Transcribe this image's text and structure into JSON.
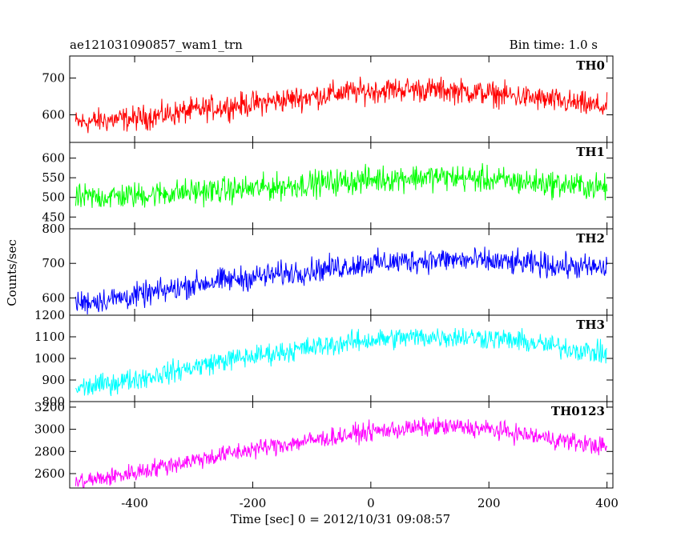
{
  "chart_data": {
    "type": "line",
    "title": "ae121031090857_wam1_trn",
    "subtitle": "Bin time: 1.0 s",
    "xlabel": "Time [sec] 0 = 2012/10/31 09:08:57",
    "ylabel": "Counts/sec",
    "xlim": [
      -510,
      410
    ],
    "xticks": [
      -400,
      -200,
      0,
      200,
      400
    ],
    "x": [
      -500,
      -450,
      -400,
      -350,
      -300,
      -250,
      -200,
      -150,
      -100,
      -50,
      0,
      50,
      100,
      150,
      200,
      250,
      300,
      350,
      400
    ],
    "panels": [
      {
        "name": "TH0",
        "color": "#ff0000",
        "ylim": [
          525,
          760
        ],
        "yticks": [
          600,
          700
        ],
        "values": [
          578,
          585,
          590,
          600,
          612,
          622,
          630,
          640,
          650,
          660,
          665,
          670,
          668,
          665,
          658,
          650,
          640,
          630,
          620
        ],
        "noise": 30
      },
      {
        "name": "TH1",
        "color": "#00ff00",
        "ylim": [
          420,
          640
        ],
        "yticks": [
          450,
          500,
          550,
          600
        ],
        "values": [
          498,
          502,
          505,
          510,
          515,
          518,
          522,
          528,
          535,
          540,
          545,
          550,
          552,
          550,
          545,
          540,
          535,
          530,
          525
        ],
        "noise": 30
      },
      {
        "name": "TH2",
        "color": "#0000ff",
        "ylim": [
          550,
          800
        ],
        "yticks": [
          600,
          700,
          800
        ],
        "values": [
          585,
          595,
          605,
          620,
          640,
          650,
          660,
          670,
          680,
          690,
          700,
          705,
          710,
          710,
          705,
          700,
          695,
          690,
          685
        ],
        "noise": 32
      },
      {
        "name": "TH3",
        "color": "#00ffff",
        "ylim": [
          800,
          1200
        ],
        "yticks": [
          800,
          900,
          1000,
          1100,
          1200
        ],
        "values": [
          860,
          880,
          905,
          930,
          960,
          990,
          1010,
          1030,
          1050,
          1070,
          1085,
          1095,
          1100,
          1100,
          1095,
          1080,
          1060,
          1040,
          1020
        ],
        "noise": 45
      },
      {
        "name": "TH0123",
        "color": "#ff00ff",
        "ylim": [
          2470,
          3250
        ],
        "yticks": [
          2600,
          2800,
          3000,
          3200
        ],
        "values": [
          2520,
          2560,
          2610,
          2670,
          2720,
          2770,
          2820,
          2860,
          2900,
          2940,
          2980,
          3000,
          3020,
          3020,
          3000,
          2960,
          2920,
          2880,
          2840
        ],
        "noise": 75
      }
    ]
  }
}
